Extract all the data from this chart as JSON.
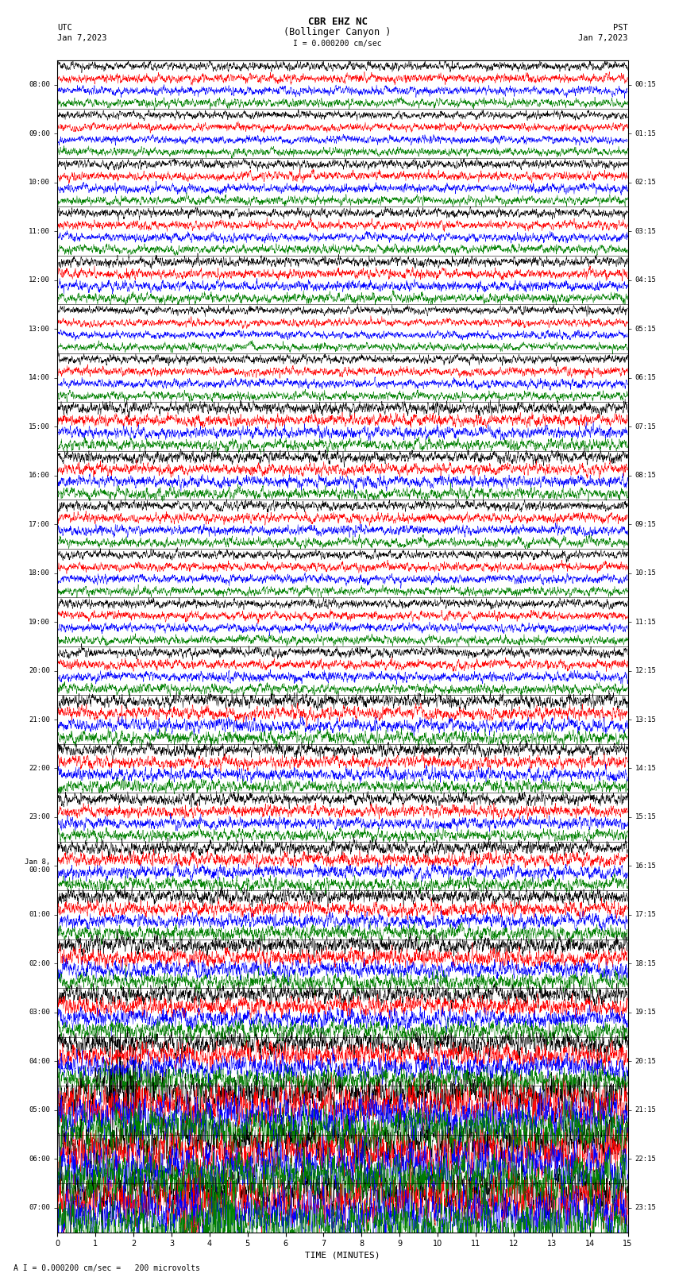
{
  "title_line1": "CBR EHZ NC",
  "title_line2": "(Bollinger Canyon )",
  "scale_label": "I = 0.000200 cm/sec",
  "bottom_label": "A I = 0.000200 cm/sec =   200 microvolts",
  "xlabel": "TIME (MINUTES)",
  "left_times_utc": [
    "08:00",
    "09:00",
    "10:00",
    "11:00",
    "12:00",
    "13:00",
    "14:00",
    "15:00",
    "16:00",
    "17:00",
    "18:00",
    "19:00",
    "20:00",
    "21:00",
    "22:00",
    "23:00",
    "Jan 8,\n00:00",
    "01:00",
    "02:00",
    "03:00",
    "04:00",
    "05:00",
    "06:00",
    "07:00"
  ],
  "right_times_pst": [
    "00:15",
    "01:15",
    "02:15",
    "03:15",
    "04:15",
    "05:15",
    "06:15",
    "07:15",
    "08:15",
    "09:15",
    "10:15",
    "11:15",
    "12:15",
    "13:15",
    "14:15",
    "15:15",
    "16:15",
    "17:15",
    "18:15",
    "19:15",
    "20:15",
    "21:15",
    "22:15",
    "23:15"
  ],
  "colors": [
    "black",
    "red",
    "blue",
    "green"
  ],
  "bg_color": "white",
  "num_rows": 24,
  "traces_per_row": 4,
  "minutes": 15,
  "samples_per_minute": 200,
  "fig_width": 8.5,
  "fig_height": 16.13
}
